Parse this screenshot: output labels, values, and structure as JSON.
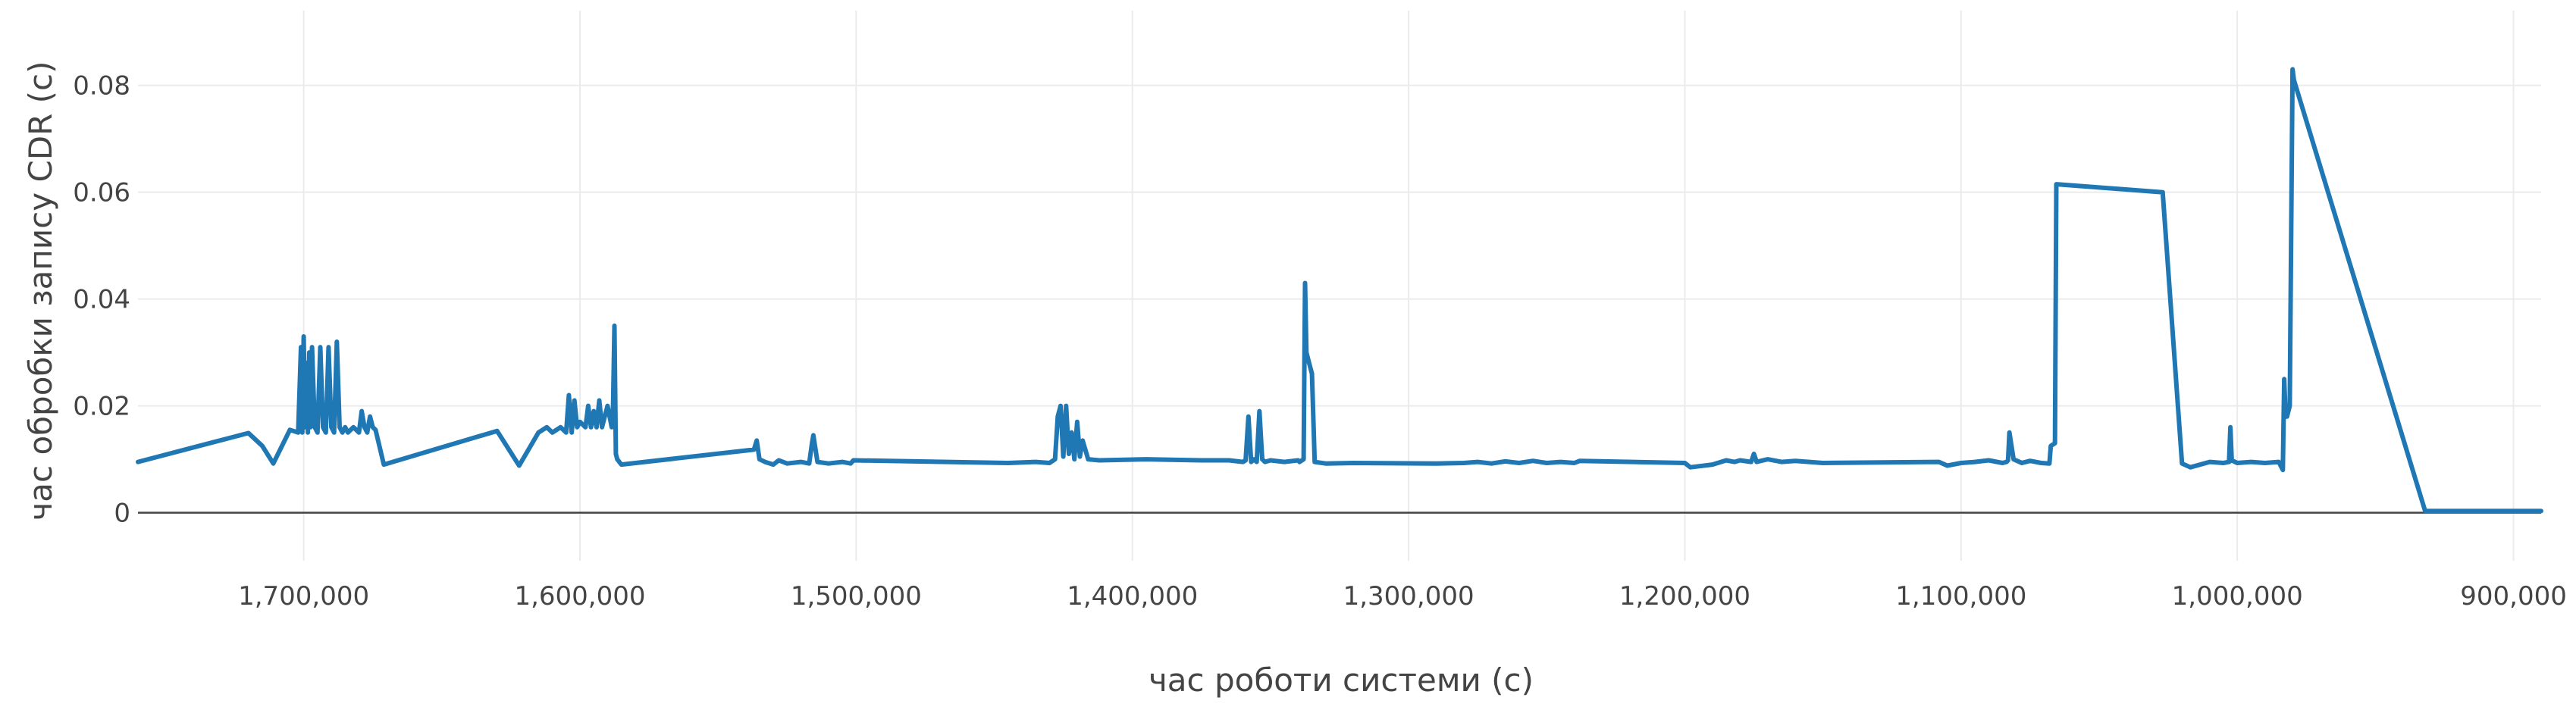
{
  "chart_data": {
    "type": "line",
    "xlabel": "час роботи системи (с)",
    "ylabel": "час обробки запису CDR (с)",
    "x_reversed": true,
    "xlim": [
      1760000,
      890000
    ],
    "ylim": [
      -0.009,
      0.094
    ],
    "grid": true,
    "x_ticks": [
      1700000,
      1600000,
      1500000,
      1400000,
      1300000,
      1200000,
      1100000,
      1000000,
      900000
    ],
    "x_tick_labels": [
      "1,700,000",
      "1,600,000",
      "1,500,000",
      "1,400,000",
      "1,300,000",
      "1,200,000",
      "1,100,000",
      "1,000,000",
      "900,000"
    ],
    "y_ticks": [
      0,
      0.02,
      0.04,
      0.06,
      0.08
    ],
    "y_tick_labels": [
      "0",
      "0.02",
      "0.04",
      "0.06",
      "0.08"
    ],
    "color": "#1f77b4",
    "series": [
      {
        "x": [
          1760000,
          1720000,
          1715000,
          1711000,
          1705000,
          1702000,
          1701000,
          1700500,
          1700000,
          1699500,
          1699000,
          1698500,
          1698000,
          1697500,
          1697000,
          1696000,
          1695000,
          1694000,
          1693000,
          1692000,
          1691000,
          1690000,
          1689000,
          1688000,
          1687000,
          1686000,
          1685000,
          1684000,
          1682000,
          1680000,
          1679000,
          1678000,
          1677000,
          1676000,
          1675000,
          1674000,
          1671000,
          1630000,
          1622000,
          1615000,
          1612000,
          1610000,
          1607000,
          1605000,
          1604000,
          1603000,
          1602000,
          1601000,
          1600000,
          1598000,
          1597000,
          1596000,
          1595000,
          1594000,
          1593000,
          1592000,
          1590000,
          1588500,
          1588000,
          1587500,
          1587000,
          1586500,
          1585000,
          1537000,
          1536000,
          1535000,
          1533000,
          1530000,
          1528000,
          1525000,
          1520000,
          1517000,
          1516000,
          1515500,
          1514000,
          1510000,
          1505000,
          1502000,
          1501000,
          1445000,
          1435000,
          1430000,
          1428000,
          1427000,
          1426000,
          1425000,
          1424000,
          1423000,
          1422000,
          1421000,
          1420000,
          1419000,
          1418000,
          1416000,
          1412000,
          1395000,
          1375000,
          1365000,
          1360000,
          1359000,
          1358000,
          1357000,
          1356000,
          1355000,
          1354000,
          1353000,
          1352000,
          1350000,
          1345000,
          1340000,
          1339500,
          1338000,
          1337500,
          1337000,
          1336000,
          1335000,
          1334000,
          1330000,
          1320000,
          1290000,
          1280000,
          1275000,
          1270000,
          1265000,
          1260000,
          1255000,
          1250000,
          1245000,
          1240000,
          1238000,
          1200000,
          1198000,
          1190000,
          1185000,
          1182000,
          1180000,
          1176000,
          1175000,
          1174000,
          1170000,
          1165000,
          1160000,
          1155000,
          1150000,
          1108000,
          1105000,
          1100000,
          1095000,
          1090000,
          1085000,
          1083500,
          1083000,
          1082500,
          1081000,
          1078000,
          1075000,
          1071000,
          1068000,
          1067500,
          1066000,
          1065500,
          1027000,
          1020000,
          1017000,
          1010000,
          1005000,
          1003000,
          1002500,
          1002000,
          1000000,
          995000,
          990000,
          985000,
          983500,
          983000,
          982500,
          982000,
          981000,
          980000,
          979500,
          932000,
          925000,
          915000,
          905000,
          895000,
          890000
        ],
        "y": [
          0.0095,
          0.0149,
          0.0125,
          0.0092,
          0.0155,
          0.015,
          0.031,
          0.015,
          0.033,
          0.016,
          0.028,
          0.015,
          0.03,
          0.016,
          0.031,
          0.016,
          0.015,
          0.031,
          0.016,
          0.015,
          0.031,
          0.016,
          0.015,
          0.032,
          0.016,
          0.015,
          0.016,
          0.015,
          0.016,
          0.015,
          0.019,
          0.016,
          0.015,
          0.018,
          0.016,
          0.0155,
          0.009,
          0.0153,
          0.0088,
          0.015,
          0.016,
          0.015,
          0.016,
          0.015,
          0.022,
          0.015,
          0.021,
          0.016,
          0.017,
          0.016,
          0.02,
          0.016,
          0.019,
          0.016,
          0.021,
          0.016,
          0.02,
          0.016,
          0.02,
          0.035,
          0.011,
          0.01,
          0.009,
          0.0118,
          0.0135,
          0.01,
          0.0095,
          0.009,
          0.0098,
          0.0092,
          0.0095,
          0.0092,
          0.013,
          0.0145,
          0.0095,
          0.0092,
          0.0095,
          0.0092,
          0.0098,
          0.0093,
          0.0095,
          0.0093,
          0.01,
          0.018,
          0.02,
          0.0105,
          0.02,
          0.011,
          0.015,
          0.01,
          0.017,
          0.0105,
          0.0135,
          0.01,
          0.0098,
          0.01,
          0.0098,
          0.0098,
          0.0095,
          0.0098,
          0.018,
          0.0095,
          0.01,
          0.0095,
          0.019,
          0.01,
          0.0095,
          0.0098,
          0.0095,
          0.0098,
          0.0095,
          0.01,
          0.043,
          0.03,
          0.028,
          0.026,
          0.0095,
          0.0092,
          0.0093,
          0.0092,
          0.0093,
          0.0095,
          0.0092,
          0.0096,
          0.0093,
          0.0097,
          0.0093,
          0.0095,
          0.0093,
          0.0097,
          0.0093,
          0.0085,
          0.009,
          0.0098,
          0.0095,
          0.0098,
          0.0095,
          0.011,
          0.0095,
          0.01,
          0.0095,
          0.0097,
          0.0095,
          0.0093,
          0.0095,
          0.0088,
          0.0093,
          0.0095,
          0.0098,
          0.0093,
          0.0095,
          0.0098,
          0.015,
          0.01,
          0.0093,
          0.0097,
          0.0093,
          0.0092,
          0.0125,
          0.013,
          0.0615,
          0.06,
          0.0092,
          0.0085,
          0.0095,
          0.0093,
          0.0095,
          0.016,
          0.0098,
          0.0093,
          0.0095,
          0.0093,
          0.0095,
          0.008,
          0.025,
          0.018,
          0.018,
          0.02,
          0.083,
          0.081,
          0.0003,
          0.0003,
          0.0003,
          0.0003,
          0.0003,
          0.0003
        ]
      }
    ]
  }
}
